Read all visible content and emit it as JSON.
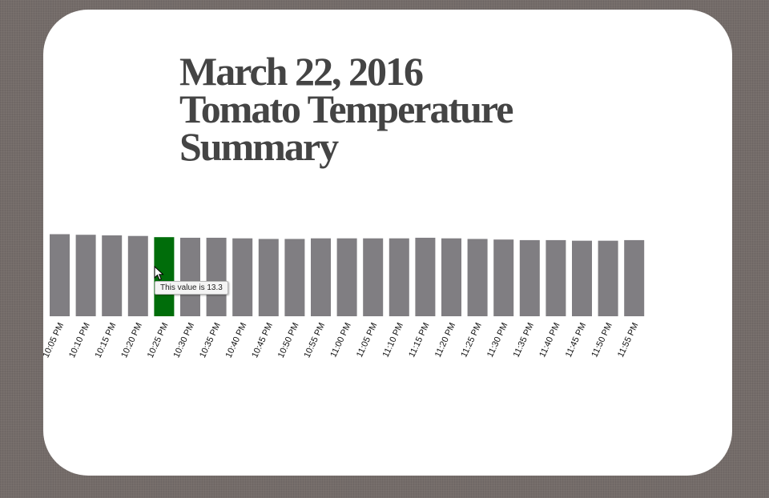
{
  "page": {
    "title_lines": [
      "March 22, 2016",
      "Tomato Temperature",
      "Summary"
    ]
  },
  "tooltip": {
    "text": "This value is 13.3"
  },
  "colors": {
    "bar": "#807e82",
    "highlight": "#006d0a",
    "background": "#746c69",
    "card": "#ffffff"
  },
  "chart_data": {
    "type": "bar",
    "categories": [
      "10:05 PM",
      "10:10 PM",
      "10:15 PM",
      "10:20 PM",
      "10:25 PM",
      "10:30 PM",
      "10:35 PM",
      "10:40 PM",
      "10:45 PM",
      "10:50 PM",
      "10:55 PM",
      "11:00 PM",
      "11:05 PM",
      "11:10 PM",
      "11:15 PM",
      "11:20 PM",
      "11:25 PM",
      "11:30 PM",
      "11:35 PM",
      "11:40 PM",
      "11:45 PM",
      "11:50 PM",
      "11:55 PM"
    ],
    "values": [
      13.8,
      13.7,
      13.6,
      13.5,
      13.3,
      13.2,
      13.2,
      13.1,
      13.0,
      13.0,
      13.1,
      13.1,
      13.1,
      13.1,
      13.2,
      13.1,
      13.0,
      12.9,
      12.8,
      12.8,
      12.7,
      12.7,
      12.8
    ],
    "highlighted_index": 4,
    "ylim": [
      0,
      14
    ],
    "title": "",
    "xlabel": "",
    "ylabel": ""
  }
}
